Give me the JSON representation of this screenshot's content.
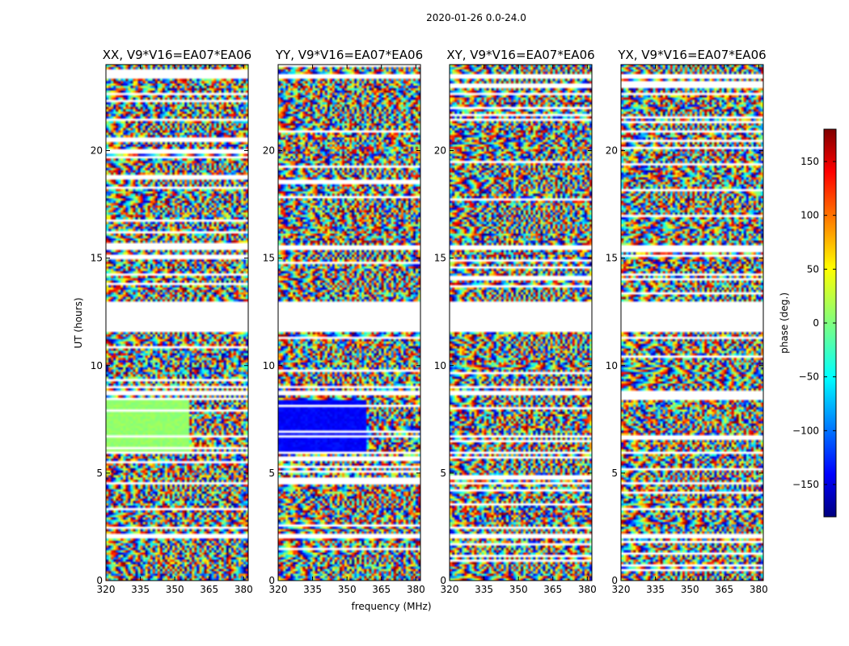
{
  "chart_data": {
    "type": "heatmap",
    "title": "2020-01-26 0.0-24.0",
    "xlabel": "frequency (MHz)",
    "ylabel": "UT (hours)",
    "xlim": [
      320,
      382
    ],
    "ylim": [
      0,
      24
    ],
    "x_ticks": [
      320,
      335,
      350,
      365,
      380
    ],
    "y_ticks": [
      0,
      5,
      10,
      15,
      20
    ],
    "panels": [
      {
        "title": "XX, V9*V16=EA07*EA06",
        "polarization": "XX"
      },
      {
        "title": "YY, V9*V16=EA07*EA06",
        "polarization": "YY"
      },
      {
        "title": "XY, V9*V16=EA07*EA06",
        "polarization": "XY"
      },
      {
        "title": "YX, V9*V16=EA07*EA06",
        "polarization": "YX"
      }
    ],
    "flagged_gaps_hours": [
      [
        1.95,
        2.15
      ],
      [
        4.45,
        4.6
      ],
      [
        5.9,
        6.05
      ],
      [
        6.65,
        6.8
      ],
      [
        8.6,
        8.8
      ],
      [
        11.6,
        12.95
      ],
      [
        15.4,
        15.65
      ],
      [
        23.35,
        23.55
      ]
    ],
    "colorbar": {
      "label": "phase (deg.)",
      "range": [
        -180,
        180
      ],
      "ticks": [
        -150,
        -100,
        -50,
        0,
        50,
        100,
        150
      ],
      "tick_labels": [
        "−150",
        "−100",
        "−50",
        "0",
        "50",
        "100",
        "150"
      ],
      "colormap": "jet"
    }
  }
}
